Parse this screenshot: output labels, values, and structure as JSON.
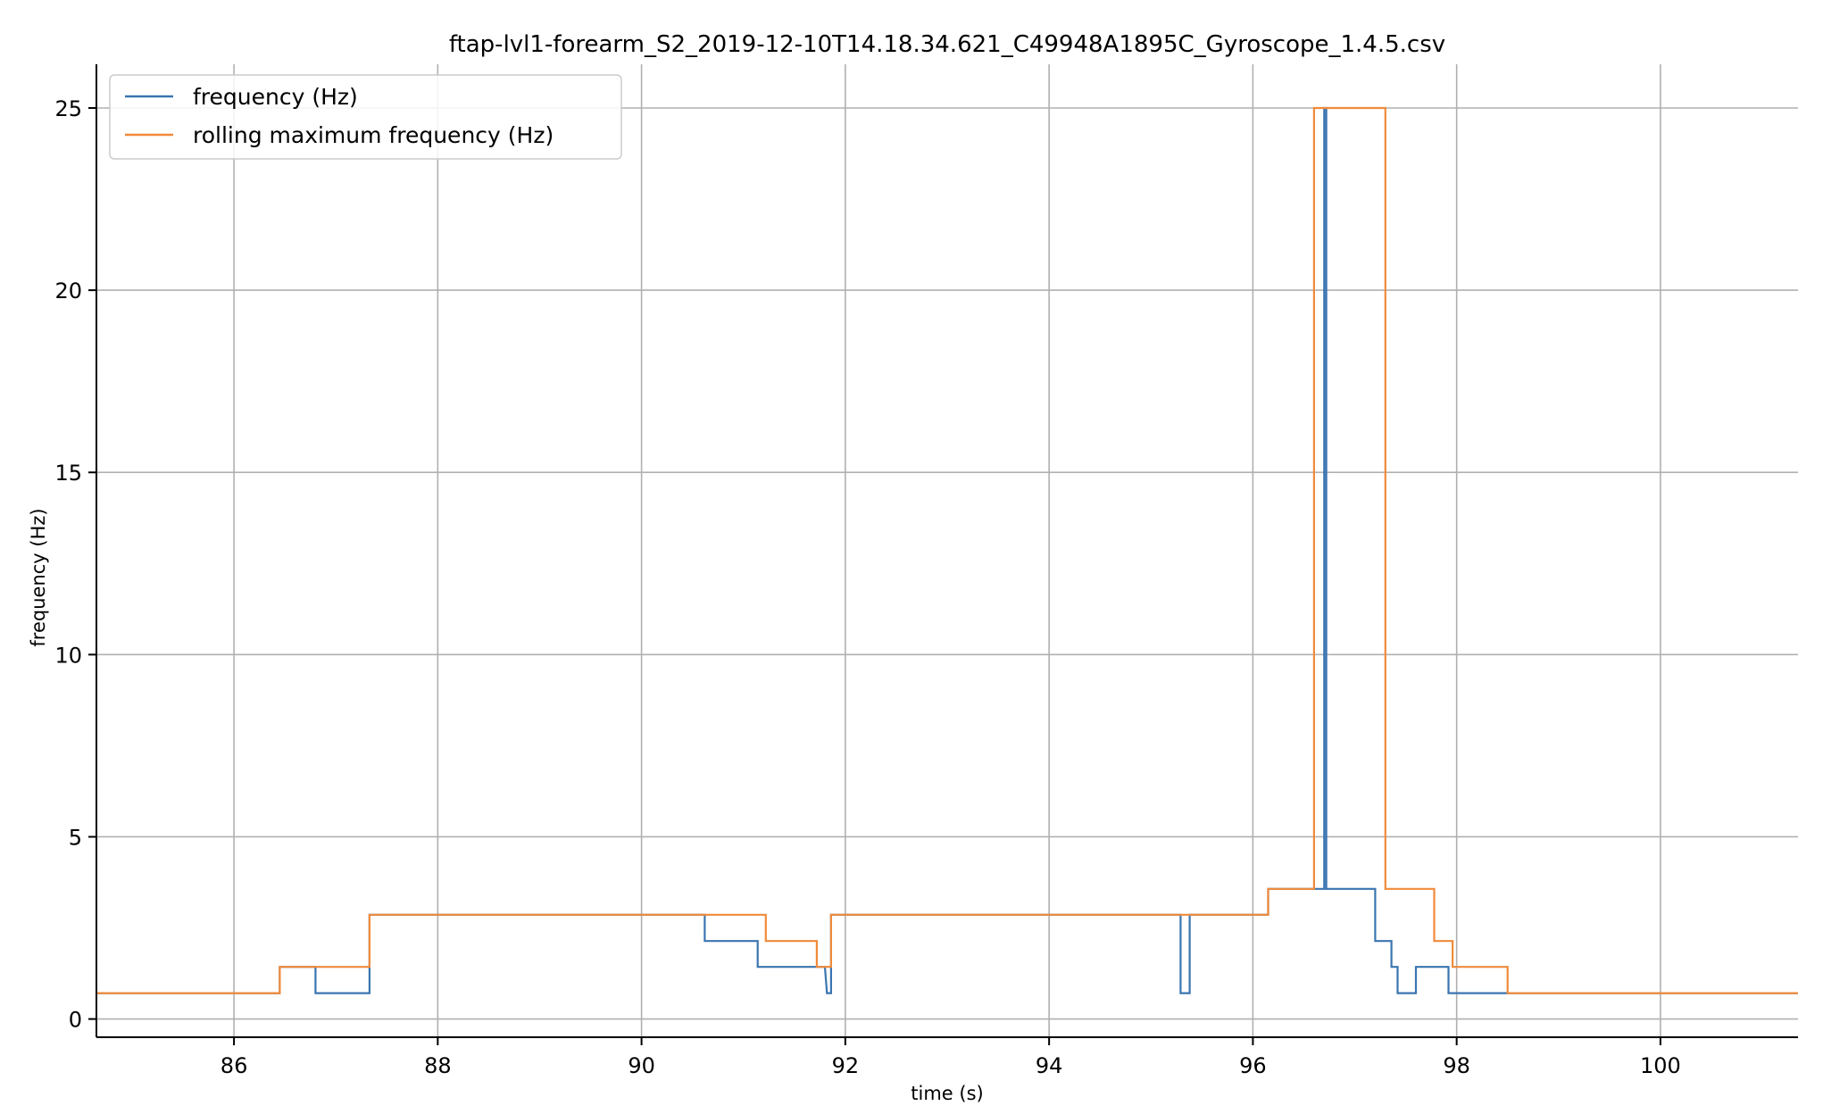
{
  "chart_data": {
    "type": "line",
    "title": "ftap-lvl1-forearm_S2_2019-12-10T14.18.34.621_C49948A1895C_Gyroscope_1.4.5.csv",
    "xlabel": "time (s)",
    "ylabel": "frequency (Hz)",
    "xlim": [
      84.65,
      101.35
    ],
    "ylim": [
      -0.5,
      26.2
    ],
    "xticks": [
      86,
      88,
      90,
      92,
      94,
      96,
      98,
      100
    ],
    "yticks": [
      0,
      5,
      10,
      15,
      20,
      25
    ],
    "grid": true,
    "legend_position": "top-left",
    "series": [
      {
        "name": "frequency (Hz)",
        "color": "#3a75b0",
        "x": [
          84.65,
          86.45,
          86.45,
          86.8,
          86.8,
          87.33,
          87.33,
          90.62,
          90.62,
          91.14,
          91.14,
          91.8,
          91.82,
          91.86,
          91.86,
          95.29,
          95.29,
          95.38,
          95.38,
          96.15,
          96.15,
          96.7,
          96.7,
          96.72,
          96.72,
          97.2,
          97.2,
          97.36,
          97.36,
          97.42,
          97.42,
          97.6,
          97.6,
          97.92,
          97.92,
          101.35
        ],
        "y": [
          0.71,
          0.71,
          1.43,
          1.43,
          0.71,
          0.71,
          2.86,
          2.86,
          2.14,
          2.14,
          1.43,
          1.43,
          0.71,
          0.71,
          2.86,
          2.86,
          0.71,
          0.71,
          2.86,
          2.86,
          3.57,
          3.57,
          25.0,
          25.0,
          3.57,
          3.57,
          2.14,
          2.14,
          1.43,
          1.43,
          0.71,
          0.71,
          1.43,
          1.43,
          0.71,
          0.71
        ]
      },
      {
        "name": "rolling maximum frequency (Hz)",
        "color": "#f08a3a",
        "x": [
          84.65,
          86.45,
          86.45,
          87.33,
          87.33,
          91.22,
          91.22,
          91.72,
          91.72,
          91.86,
          91.86,
          96.15,
          96.15,
          96.6,
          96.6,
          97.3,
          97.3,
          97.78,
          97.78,
          97.96,
          97.96,
          98.5,
          98.5,
          101.35
        ],
        "y": [
          0.71,
          0.71,
          1.43,
          1.43,
          2.86,
          2.86,
          2.14,
          2.14,
          1.43,
          1.43,
          2.86,
          2.86,
          3.57,
          3.57,
          25.0,
          25.0,
          3.57,
          3.57,
          2.14,
          2.14,
          1.43,
          1.43,
          0.71,
          0.71
        ]
      }
    ]
  }
}
